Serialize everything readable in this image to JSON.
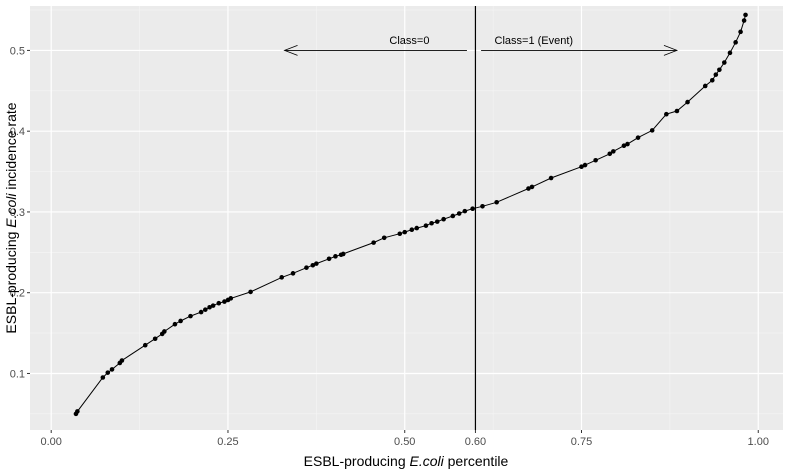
{
  "chart_data": {
    "type": "line",
    "title": "",
    "xlabel": "ESBL-producing E.coli percentile",
    "xlabel_parts": {
      "pre": "ESBL-producing ",
      "italic": "E.coli",
      "post": " percentile"
    },
    "ylabel": "ESBL-producing E.coli incidence rate",
    "ylabel_parts": {
      "pre": "ESBL-producing ",
      "italic": "E.coli",
      "post": " incidence rate"
    },
    "xlim": [
      -0.03,
      1.035
    ],
    "ylim": [
      0.03,
      0.555
    ],
    "xticks": [
      0.0,
      0.25,
      0.5,
      0.6,
      0.75,
      1.0
    ],
    "xtick_labels": [
      "0.00",
      "0.25",
      "0.50",
      "0.60",
      "0.75",
      "1.00"
    ],
    "xgrid_major": [
      0.0,
      0.25,
      0.5,
      0.75,
      1.0
    ],
    "xgrid_minor": [
      0.125,
      0.375,
      0.625,
      0.875
    ],
    "yticks": [
      0.1,
      0.2,
      0.3,
      0.4,
      0.5
    ],
    "ytick_labels": [
      "0.1",
      "0.2",
      "0.3",
      "0.4",
      "0.5"
    ],
    "ygrid_minor": [
      0.05,
      0.15,
      0.25,
      0.35,
      0.45,
      0.55
    ],
    "grid": true,
    "vline": {
      "x": 0.6
    },
    "annotations": [
      {
        "text": "Class=0",
        "x": 0.535,
        "y": 0.508,
        "anchor": "end"
      },
      {
        "text": "Class=1 (Event)",
        "x": 0.627,
        "y": 0.508,
        "anchor": "start"
      }
    ],
    "arrows": [
      {
        "name": "class-0-arrow",
        "from": [
          0.588,
          0.5
        ],
        "to": [
          0.33,
          0.5
        ]
      },
      {
        "name": "class-1-arrow",
        "from": [
          0.608,
          0.5
        ],
        "to": [
          0.885,
          0.5
        ]
      }
    ],
    "x": [
      0.035,
      0.037,
      0.073,
      0.08,
      0.086,
      0.097,
      0.1,
      0.133,
      0.147,
      0.157,
      0.16,
      0.175,
      0.183,
      0.197,
      0.212,
      0.218,
      0.224,
      0.229,
      0.237,
      0.245,
      0.25,
      0.254,
      0.282,
      0.326,
      0.342,
      0.361,
      0.37,
      0.375,
      0.393,
      0.402,
      0.41,
      0.413,
      0.456,
      0.471,
      0.493,
      0.5,
      0.51,
      0.517,
      0.53,
      0.538,
      0.546,
      0.555,
      0.568,
      0.577,
      0.585,
      0.596,
      0.61,
      0.63,
      0.675,
      0.68,
      0.707,
      0.75,
      0.755,
      0.77,
      0.79,
      0.795,
      0.81,
      0.815,
      0.83,
      0.85,
      0.87,
      0.885,
      0.9,
      0.925,
      0.935,
      0.94,
      0.945,
      0.952,
      0.96,
      0.968,
      0.975,
      0.98,
      0.982
    ],
    "y": [
      0.05,
      0.053,
      0.095,
      0.101,
      0.105,
      0.113,
      0.116,
      0.135,
      0.143,
      0.149,
      0.152,
      0.161,
      0.165,
      0.171,
      0.176,
      0.179,
      0.182,
      0.184,
      0.187,
      0.189,
      0.191,
      0.193,
      0.201,
      0.219,
      0.224,
      0.231,
      0.234,
      0.236,
      0.242,
      0.245,
      0.247,
      0.248,
      0.262,
      0.268,
      0.273,
      0.275,
      0.278,
      0.28,
      0.283,
      0.286,
      0.288,
      0.291,
      0.295,
      0.298,
      0.301,
      0.304,
      0.307,
      0.312,
      0.329,
      0.331,
      0.342,
      0.356,
      0.358,
      0.364,
      0.372,
      0.375,
      0.382,
      0.384,
      0.392,
      0.401,
      0.421,
      0.425,
      0.436,
      0.456,
      0.463,
      0.47,
      0.476,
      0.485,
      0.497,
      0.51,
      0.523,
      0.537,
      0.544
    ]
  }
}
